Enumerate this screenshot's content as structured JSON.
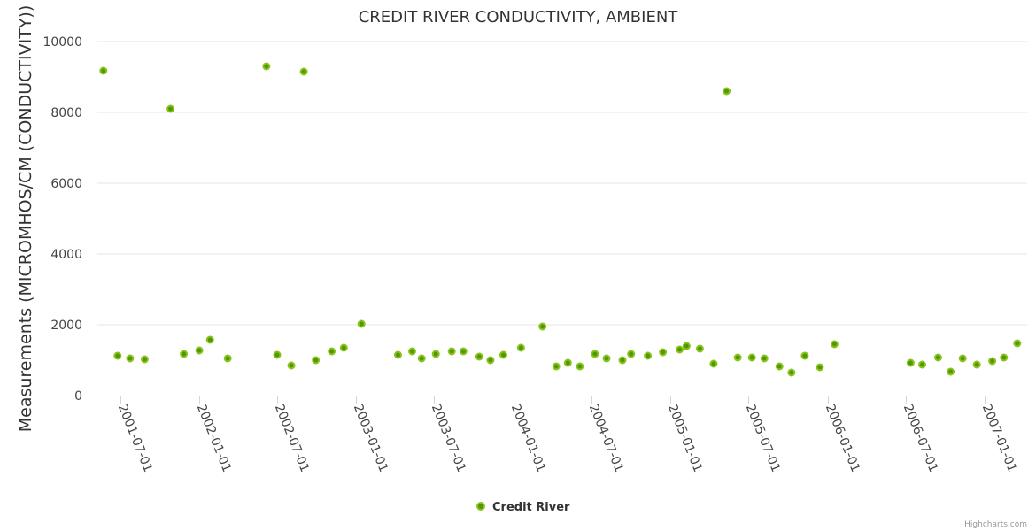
{
  "chart_data": {
    "type": "scatter",
    "title": "CREDIT RIVER CONDUCTIVITY, AMBIENT",
    "xlabel": "",
    "ylabel": "Measurements (MICROMHOS/CM (CONDUCTIVITY))",
    "xlim": [
      "2001-05-09",
      "2007-04-10"
    ],
    "ylim": [
      0,
      10000
    ],
    "yticks": [
      0,
      2000,
      4000,
      6000,
      8000,
      10000
    ],
    "xticks": [
      "2001-07-01",
      "2002-01-01",
      "2002-07-01",
      "2003-01-01",
      "2003-07-01",
      "2004-01-01",
      "2004-07-01",
      "2005-01-01",
      "2005-07-01",
      "2006-01-01",
      "2006-07-01",
      "2007-01-01"
    ],
    "grid": true,
    "legend_position": "bottom-center",
    "colors": {
      "marker_fill": "#4c9a00",
      "marker_stroke": "#8cc21e",
      "grid": "#e6e6e6",
      "axis": "#ccd6eb"
    },
    "series": [
      {
        "name": "Credit River",
        "points": [
          [
            "2001-05-23",
            9175
          ],
          [
            "2001-06-25",
            1125
          ],
          [
            "2001-07-24",
            1050
          ],
          [
            "2001-08-27",
            1025
          ],
          [
            "2001-10-26",
            8100
          ],
          [
            "2001-11-26",
            1175
          ],
          [
            "2002-01-01",
            1275
          ],
          [
            "2002-01-26",
            1575
          ],
          [
            "2002-03-08",
            1050
          ],
          [
            "2002-06-06",
            9300
          ],
          [
            "2002-07-01",
            1150
          ],
          [
            "2002-08-03",
            850
          ],
          [
            "2002-09-01",
            9150
          ],
          [
            "2002-09-29",
            1000
          ],
          [
            "2002-11-05",
            1250
          ],
          [
            "2002-12-03",
            1350
          ],
          [
            "2003-01-13",
            2025
          ],
          [
            "2003-04-08",
            1150
          ],
          [
            "2003-05-11",
            1250
          ],
          [
            "2003-06-02",
            1050
          ],
          [
            "2003-07-05",
            1175
          ],
          [
            "2003-08-11",
            1250
          ],
          [
            "2003-09-07",
            1250
          ],
          [
            "2003-10-14",
            1100
          ],
          [
            "2003-11-09",
            1000
          ],
          [
            "2003-12-09",
            1150
          ],
          [
            "2004-01-19",
            1350
          ],
          [
            "2004-03-09",
            1950
          ],
          [
            "2004-04-10",
            825
          ],
          [
            "2004-05-07",
            925
          ],
          [
            "2004-06-04",
            825
          ],
          [
            "2004-07-09",
            1175
          ],
          [
            "2004-08-05",
            1050
          ],
          [
            "2004-09-11",
            1000
          ],
          [
            "2004-10-01",
            1175
          ],
          [
            "2004-11-09",
            1125
          ],
          [
            "2004-12-14",
            1225
          ],
          [
            "2005-01-22",
            1300
          ],
          [
            "2005-02-07",
            1400
          ],
          [
            "2005-03-10",
            1325
          ],
          [
            "2005-04-11",
            900
          ],
          [
            "2005-05-11",
            8600
          ],
          [
            "2005-06-06",
            1075
          ],
          [
            "2005-07-09",
            1075
          ],
          [
            "2005-08-07",
            1050
          ],
          [
            "2005-09-11",
            825
          ],
          [
            "2005-10-09",
            650
          ],
          [
            "2005-11-09",
            1125
          ],
          [
            "2005-12-14",
            800
          ],
          [
            "2006-01-17",
            1450
          ],
          [
            "2006-07-13",
            925
          ],
          [
            "2006-08-09",
            875
          ],
          [
            "2006-09-15",
            1075
          ],
          [
            "2006-10-14",
            675
          ],
          [
            "2006-11-11",
            1050
          ],
          [
            "2006-12-14",
            875
          ],
          [
            "2007-01-19",
            975
          ],
          [
            "2007-02-15",
            1075
          ],
          [
            "2007-03-18",
            1475
          ]
        ]
      }
    ]
  },
  "credits": "Highcharts.com"
}
